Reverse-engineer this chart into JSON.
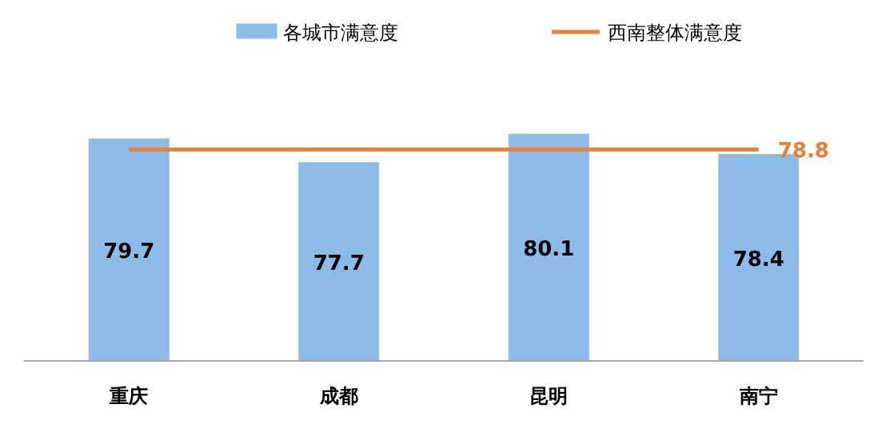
{
  "chart_data": {
    "type": "bar",
    "categories": [
      "重庆",
      "成都",
      "昆明",
      "南宁"
    ],
    "ylim": [
      61,
      80.1
    ],
    "tick_labels": "x",
    "legend": "top",
    "series": [
      {
        "name": "各城市满意度",
        "color": "#8dbbe8",
        "values": [
          79.7,
          77.7,
          80.1,
          78.4
        ],
        "value_labels": [
          "79.7",
          "77.7",
          "80.1",
          "78.4"
        ]
      },
      {
        "name": "西南整体满意度",
        "type": "line",
        "color": "#ed7d31",
        "values": [
          78.8,
          78.8,
          78.8,
          78.8
        ],
        "value_labels": [
          null,
          null,
          null,
          "78.8"
        ]
      }
    ]
  }
}
